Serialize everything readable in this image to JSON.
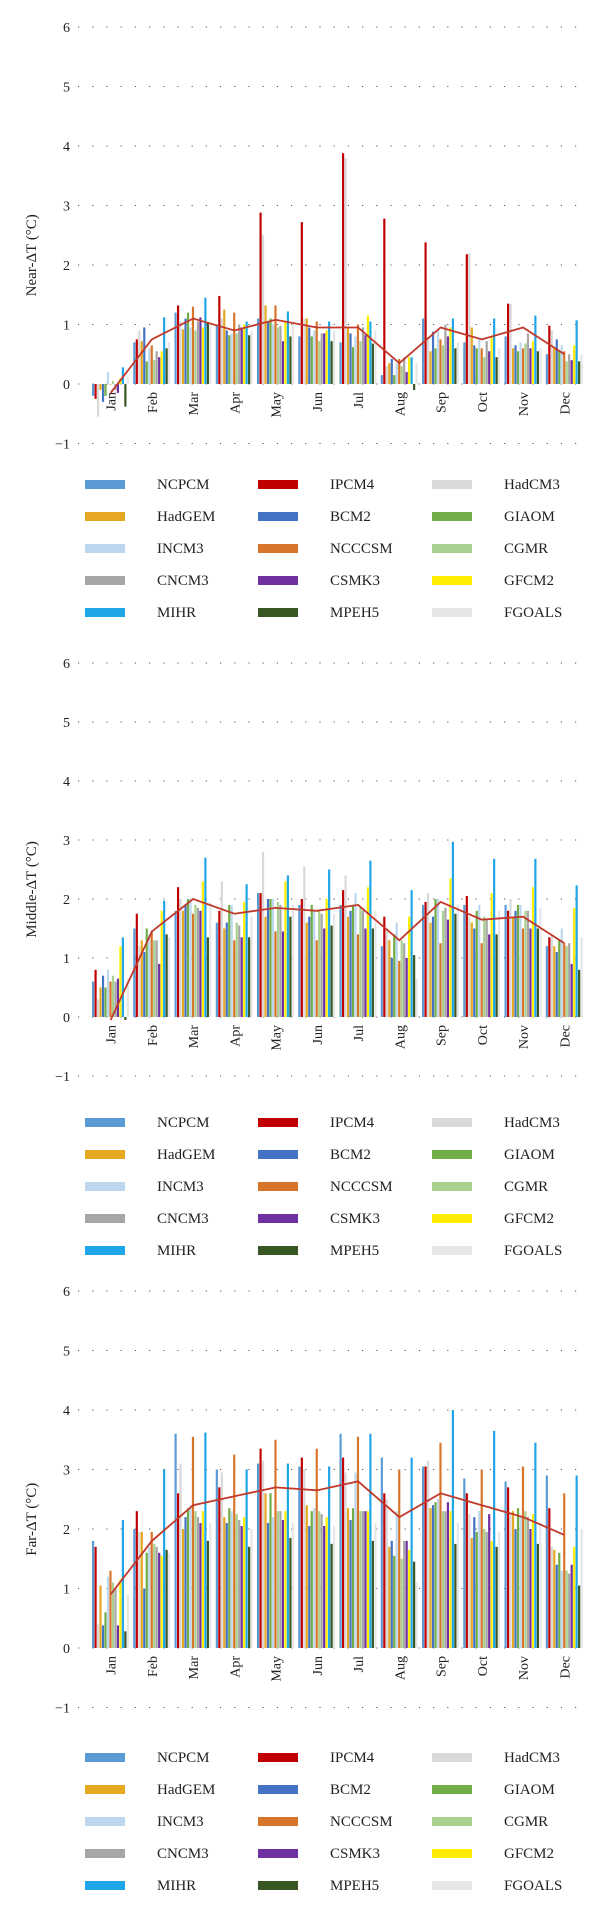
{
  "models": [
    {
      "name": "NCPCM",
      "color": "#5b9bd5"
    },
    {
      "name": "IPCM4",
      "color": "#c00000"
    },
    {
      "name": "HadCM3",
      "color": "#d9d9d9"
    },
    {
      "name": "HadGEM",
      "color": "#e6a823"
    },
    {
      "name": "BCM2",
      "color": "#4472c4"
    },
    {
      "name": "GIAOM",
      "color": "#70ad47"
    },
    {
      "name": "INCM3",
      "color": "#bdd7ee"
    },
    {
      "name": "NCCCSM",
      "color": "#d9752a"
    },
    {
      "name": "CGMR",
      "color": "#a9d08e"
    },
    {
      "name": "CNCM3",
      "color": "#a6a6a6"
    },
    {
      "name": "CSMK3",
      "color": "#7030a0"
    },
    {
      "name": "GFCM2",
      "color": "#ffee00"
    },
    {
      "name": "MIHR",
      "color": "#1ea6e8"
    },
    {
      "name": "MPEH5",
      "color": "#385723"
    },
    {
      "name": "FGOALS",
      "color": "#e7e6e6"
    }
  ],
  "mean_line_color": "#c0392b",
  "chart_data": [
    {
      "type": "bar",
      "ylabel": "Near-ΔT (°C)",
      "ylim": [
        -1,
        6
      ],
      "yticks": [
        "−1",
        "0",
        "1",
        "2",
        "3",
        "4",
        "5",
        "6"
      ],
      "categories": [
        "Jan",
        "Feb",
        "Mar",
        "Apr",
        "May",
        "Jun",
        "Jul",
        "Aug",
        "Sep",
        "Oct",
        "Nov",
        "Dec"
      ],
      "grid": "dotted",
      "legend_position": "bottom",
      "series": [
        {
          "name": "NCPCM",
          "values": [
            -0.2,
            0.7,
            1.2,
            1.0,
            1.1,
            0.8,
            0.7,
            0.15,
            1.1,
            0.7,
            0.8,
            0.5
          ]
        },
        {
          "name": "IPCM4",
          "values": [
            -0.25,
            0.75,
            1.32,
            1.48,
            2.88,
            2.72,
            3.88,
            2.78,
            2.38,
            2.18,
            1.35,
            0.98
          ]
        },
        {
          "name": "HadCM3",
          "values": [
            -0.55,
            0.9,
            1.05,
            1.1,
            2.5,
            1.1,
            3.8,
            0.3,
            0.75,
            2.2,
            1.35,
            0.9
          ]
        },
        {
          "name": "HadGEM",
          "values": [
            -0.1,
            0.72,
            0.92,
            1.25,
            1.32,
            1.1,
            0.95,
            0.35,
            0.55,
            0.95,
            0.6,
            0.6
          ]
        },
        {
          "name": "BCM2",
          "values": [
            -0.3,
            0.95,
            1.1,
            0.9,
            1.05,
            0.95,
            0.85,
            0.42,
            0.88,
            0.65,
            0.65,
            0.75
          ]
        },
        {
          "name": "GIAOM",
          "values": [
            -0.2,
            0.38,
            1.2,
            0.82,
            1.1,
            0.8,
            0.62,
            0.15,
            0.6,
            0.6,
            0.55,
            0.55
          ]
        },
        {
          "name": "INCM3",
          "values": [
            0.2,
            0.6,
            0.95,
            0.85,
            1.0,
            0.9,
            0.8,
            0.35,
            0.9,
            0.75,
            0.7,
            0.65
          ]
        },
        {
          "name": "NCCCSM",
          "values": [
            0.0,
            0.65,
            1.3,
            1.2,
            1.32,
            1.05,
            1.0,
            0.42,
            0.75,
            0.6,
            0.6,
            0.55
          ]
        },
        {
          "name": "CGMR",
          "values": [
            0.05,
            0.4,
            0.9,
            0.85,
            0.95,
            0.72,
            0.72,
            0.3,
            0.65,
            0.45,
            0.68,
            0.38
          ]
        },
        {
          "name": "CNCM3",
          "values": [
            -0.1,
            0.55,
            1.05,
            1.0,
            0.98,
            0.85,
            0.95,
            0.45,
            1.0,
            0.72,
            0.85,
            0.5
          ]
        },
        {
          "name": "CSMK3",
          "values": [
            -0.15,
            0.45,
            1.12,
            0.95,
            0.72,
            0.85,
            0.82,
            0.2,
            0.8,
            0.55,
            0.6,
            0.4
          ]
        },
        {
          "name": "GFCM2",
          "values": [
            0.1,
            0.55,
            0.95,
            1.0,
            1.05,
            0.9,
            1.15,
            0.45,
            0.95,
            0.8,
            0.72,
            0.65
          ]
        },
        {
          "name": "MIHR",
          "values": [
            0.28,
            1.12,
            1.45,
            1.05,
            1.22,
            1.05,
            1.05,
            0.45,
            1.1,
            1.1,
            1.15,
            1.07
          ]
        },
        {
          "name": "MPEH5",
          "values": [
            -0.38,
            0.6,
            1.02,
            0.82,
            0.8,
            0.72,
            0.68,
            -0.1,
            0.6,
            0.45,
            0.55,
            0.38
          ]
        },
        {
          "name": "FGOALS",
          "values": [
            0.1,
            0.7,
            1.0,
            0.9,
            1.05,
            0.9,
            0.9,
            0.35,
            0.7,
            0.6,
            0.6,
            0.5
          ]
        }
      ],
      "mean": [
        -0.15,
        0.75,
        1.1,
        0.9,
        1.08,
        0.95,
        0.95,
        0.35,
        0.95,
        0.75,
        0.95,
        0.5
      ]
    },
    {
      "type": "bar",
      "ylabel": "Middle-ΔT (°C)",
      "ylim": [
        -1,
        6
      ],
      "yticks": [
        "−1",
        "0",
        "1",
        "2",
        "3",
        "4",
        "5",
        "6"
      ],
      "categories": [
        "Jan",
        "Feb",
        "Mar",
        "Apr",
        "May",
        "Jun",
        "Jul",
        "Aug",
        "Sep",
        "Oct",
        "Nov",
        "Dec"
      ],
      "grid": "dotted",
      "legend_position": "bottom",
      "series": [
        {
          "name": "NCPCM",
          "values": [
            0.6,
            1.5,
            1.8,
            1.6,
            2.1,
            1.9,
            1.9,
            1.2,
            1.9,
            1.9,
            1.9,
            1.2
          ]
        },
        {
          "name": "IPCM4",
          "values": [
            0.8,
            1.75,
            2.2,
            1.8,
            2.1,
            2.0,
            2.15,
            1.7,
            1.95,
            2.05,
            1.8,
            1.35
          ]
        },
        {
          "name": "HadCM3",
          "values": [
            0.3,
            1.2,
            2.0,
            2.3,
            2.8,
            2.55,
            2.4,
            1.5,
            2.1,
            1.7,
            2.0,
            1.4
          ]
        },
        {
          "name": "HadGEM",
          "values": [
            0.5,
            1.3,
            1.8,
            1.5,
            1.7,
            1.6,
            1.7,
            1.3,
            1.6,
            1.6,
            1.7,
            1.2
          ]
        },
        {
          "name": "BCM2",
          "values": [
            0.7,
            1.1,
            1.9,
            1.6,
            2.0,
            1.7,
            1.8,
            1.0,
            1.7,
            1.5,
            1.8,
            1.1
          ]
        },
        {
          "name": "GIAOM",
          "values": [
            0.5,
            1.5,
            2.0,
            1.9,
            2.0,
            1.9,
            1.9,
            1.4,
            2.0,
            1.8,
            1.9,
            1.3
          ]
        },
        {
          "name": "INCM3",
          "values": [
            0.8,
            1.4,
            2.0,
            1.9,
            2.0,
            1.8,
            2.1,
            1.6,
            2.0,
            1.9,
            1.9,
            1.5
          ]
        },
        {
          "name": "NCCCSM",
          "values": [
            0.6,
            1.45,
            1.75,
            1.3,
            1.45,
            1.3,
            1.4,
            0.95,
            1.25,
            1.25,
            1.5,
            1.25
          ]
        },
        {
          "name": "CGMR",
          "values": [
            0.7,
            1.3,
            1.9,
            1.6,
            1.95,
            1.8,
            1.85,
            1.3,
            1.8,
            1.7,
            1.8,
            1.2
          ]
        },
        {
          "name": "CNCM3",
          "values": [
            0.6,
            1.3,
            1.85,
            1.55,
            1.9,
            1.75,
            1.8,
            1.25,
            1.85,
            1.65,
            1.8,
            1.25
          ]
        },
        {
          "name": "CSMK3",
          "values": [
            0.65,
            0.9,
            1.8,
            1.35,
            1.45,
            1.5,
            1.5,
            1.0,
            1.65,
            1.4,
            1.5,
            0.9
          ]
        },
        {
          "name": "GFCM2",
          "values": [
            1.2,
            1.8,
            2.3,
            1.95,
            2.3,
            2.0,
            2.2,
            1.7,
            2.35,
            2.1,
            2.2,
            1.85
          ]
        },
        {
          "name": "MIHR",
          "values": [
            1.35,
            1.97,
            2.7,
            2.25,
            2.4,
            2.5,
            2.65,
            2.15,
            2.97,
            2.68,
            2.68,
            2.23
          ]
        },
        {
          "name": "MPEH5",
          "values": [
            -0.05,
            1.4,
            1.35,
            1.35,
            1.7,
            1.55,
            1.5,
            1.05,
            1.75,
            1.4,
            1.5,
            0.8
          ]
        },
        {
          "name": "FGOALS",
          "values": [
            0.65,
            1.35,
            1.95,
            1.7,
            1.9,
            1.75,
            1.8,
            0.65,
            1.9,
            1.8,
            1.85,
            1.35
          ]
        }
      ],
      "mean": [
        -0.05,
        1.45,
        2.0,
        1.75,
        1.85,
        1.8,
        1.9,
        1.3,
        1.95,
        1.65,
        1.7,
        1.25
      ]
    },
    {
      "type": "bar",
      "ylabel": "Far-ΔT (°C)",
      "ylim": [
        -1,
        6
      ],
      "yticks": [
        "−1",
        "0",
        "1",
        "2",
        "3",
        "4",
        "5",
        "6"
      ],
      "categories": [
        "Jan",
        "Feb",
        "Mar",
        "Apr",
        "May",
        "Jun",
        "Jul",
        "Aug",
        "Sep",
        "Oct",
        "Nov",
        "Dec"
      ],
      "grid": "dotted",
      "legend_position": "bottom",
      "series": [
        {
          "name": "NCPCM",
          "values": [
            1.8,
            2.0,
            3.6,
            3.0,
            3.1,
            3.05,
            3.6,
            3.2,
            3.05,
            2.85,
            2.8,
            2.9
          ]
        },
        {
          "name": "IPCM4",
          "values": [
            1.7,
            2.3,
            2.6,
            2.7,
            3.35,
            3.2,
            3.2,
            2.6,
            3.05,
            2.6,
            2.7,
            2.35
          ]
        },
        {
          "name": "HadCM3",
          "values": [
            0.4,
            1.95,
            3.1,
            2.95,
            3.15,
            3.0,
            2.95,
            2.5,
            3.15,
            2.25,
            2.25,
            1.7
          ]
        },
        {
          "name": "HadGEM",
          "values": [
            1.05,
            1.95,
            2.0,
            2.2,
            2.6,
            2.4,
            2.35,
            1.7,
            2.35,
            1.85,
            2.3,
            1.65
          ]
        },
        {
          "name": "BCM2",
          "values": [
            0.38,
            1.0,
            2.2,
            2.1,
            2.1,
            2.05,
            2.15,
            1.8,
            2.4,
            2.2,
            2.0,
            1.4
          ]
        },
        {
          "name": "GIAOM",
          "values": [
            0.6,
            1.6,
            2.35,
            2.35,
            2.6,
            2.3,
            2.35,
            1.55,
            2.45,
            1.95,
            2.35,
            1.6
          ]
        },
        {
          "name": "INCM3",
          "values": [
            1.2,
            1.7,
            2.4,
            2.3,
            2.2,
            2.35,
            2.95,
            2.3,
            2.5,
            2.3,
            2.2,
            1.3
          ]
        },
        {
          "name": "NCCCSM",
          "values": [
            1.3,
            1.95,
            3.55,
            3.25,
            3.5,
            3.35,
            3.55,
            3.0,
            3.45,
            3.0,
            3.05,
            2.6
          ]
        },
        {
          "name": "CGMR",
          "values": [
            1.1,
            1.75,
            2.3,
            2.25,
            2.3,
            2.3,
            2.3,
            1.5,
            2.3,
            2.0,
            2.3,
            1.3
          ]
        },
        {
          "name": "CNCM3",
          "values": [
            1.0,
            1.7,
            2.2,
            2.15,
            2.3,
            2.25,
            2.3,
            1.8,
            2.3,
            1.95,
            2.2,
            1.25
          ]
        },
        {
          "name": "CSMK3",
          "values": [
            0.38,
            1.6,
            2.1,
            2.05,
            2.15,
            2.05,
            2.3,
            1.8,
            2.45,
            2.25,
            2.0,
            1.4
          ]
        },
        {
          "name": "GFCM2",
          "values": [
            1.15,
            1.55,
            2.3,
            2.2,
            2.3,
            2.2,
            2.3,
            1.65,
            2.3,
            1.8,
            2.25,
            1.7
          ]
        },
        {
          "name": "MIHR",
          "values": [
            2.15,
            3.0,
            3.62,
            3.0,
            3.1,
            3.05,
            3.6,
            3.2,
            4.0,
            3.65,
            3.45,
            2.9
          ]
        },
        {
          "name": "MPEH5",
          "values": [
            0.28,
            1.65,
            1.8,
            1.7,
            1.85,
            1.75,
            1.8,
            1.45,
            1.75,
            1.7,
            1.75,
            1.05
          ]
        },
        {
          "name": "FGOALS",
          "values": [
            0.9,
            1.6,
            2.1,
            2.0,
            2.1,
            2.05,
            2.1,
            1.1,
            2.1,
            1.95,
            2.1,
            2.0
          ]
        }
      ],
      "mean": [
        0.9,
        1.8,
        2.4,
        2.55,
        2.7,
        2.65,
        2.8,
        2.2,
        2.6,
        2.4,
        2.2,
        1.9
      ]
    }
  ]
}
